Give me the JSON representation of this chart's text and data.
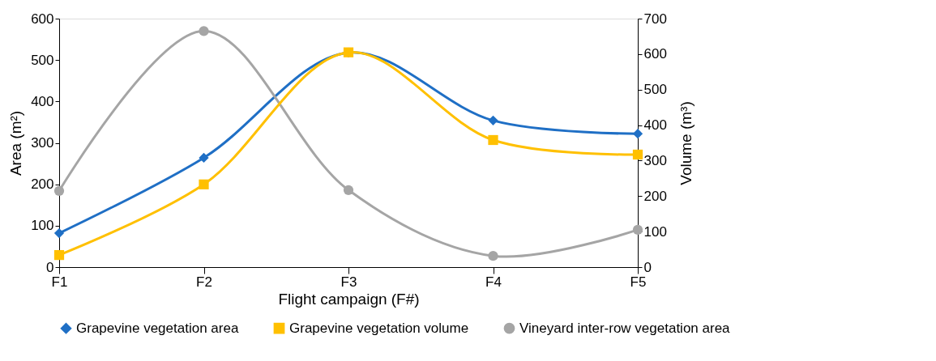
{
  "chart_data": {
    "type": "line",
    "xlabel": "Flight campaign (F#)",
    "ylabel": "Area (m²)",
    "y2label": "Volume (m³)",
    "categories": [
      "F1",
      "F2",
      "F3",
      "F4",
      "F5"
    ],
    "ylim": [
      0,
      600
    ],
    "yticks": [
      0,
      100,
      200,
      300,
      400,
      500,
      600
    ],
    "y2lim": [
      0,
      700
    ],
    "y2ticks": [
      0,
      100,
      200,
      300,
      400,
      500,
      600,
      700
    ],
    "grid": false,
    "legend": "bottom",
    "line_style": "solid",
    "series": [
      {
        "name": "Grapevine vegetation area",
        "color": "#1f6fc5",
        "marker": "diamond",
        "values": [
          82,
          264,
          518,
          354,
          322
        ]
      },
      {
        "name": "Grapevine vegetation volume",
        "color": "#ffc000",
        "marker": "square",
        "axis": "y2",
        "values": [
          34,
          233,
          605,
          358,
          317
        ]
      },
      {
        "name": "Vineyard inter-row vegetation area",
        "color": "#a5a5a5",
        "marker": "circle",
        "values": [
          184,
          570,
          186,
          27,
          90
        ]
      }
    ]
  }
}
